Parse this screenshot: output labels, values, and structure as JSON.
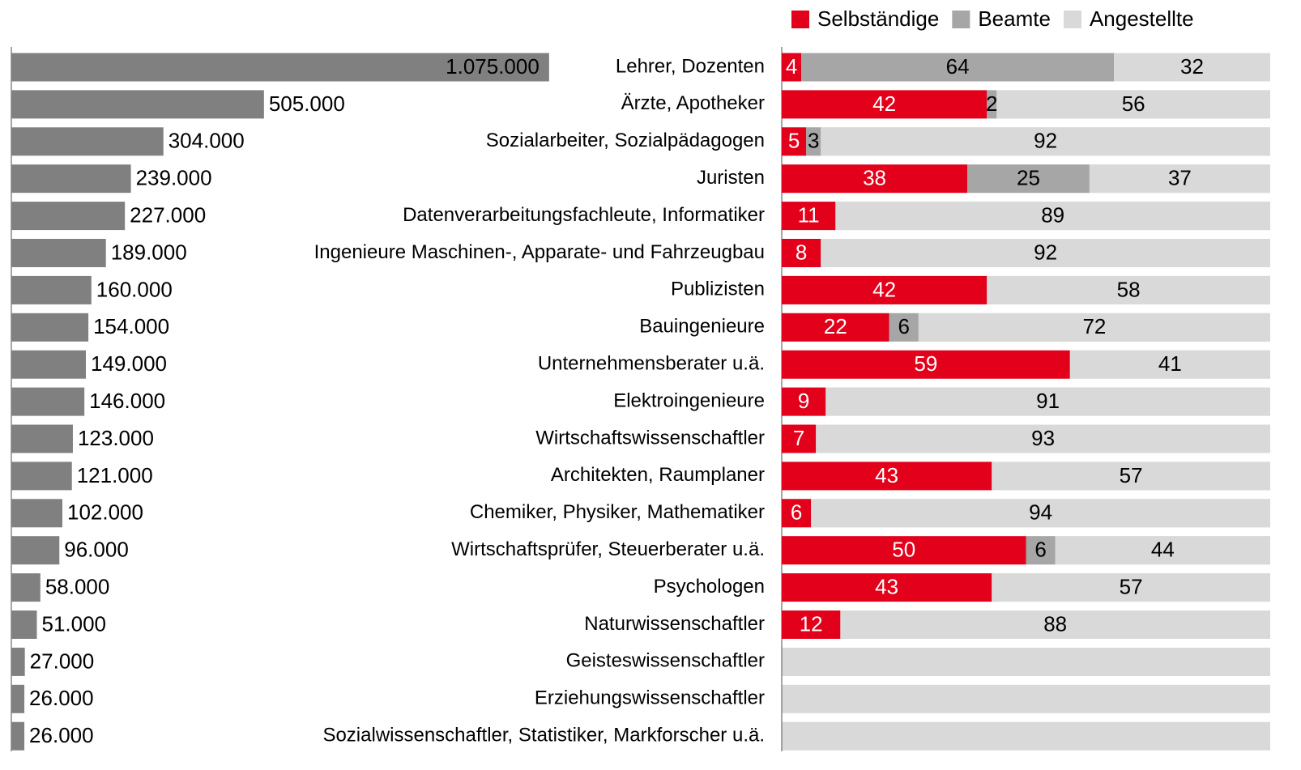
{
  "chart_data": [
    {
      "type": "hbar",
      "categories": [
        "Lehrer, Dozenten",
        "Ärzte, Apotheker",
        "Sozialarbeiter, Sozialpädagogen",
        "Juristen",
        "Datenverarbeitungsfachleute, Informatiker",
        "Ingenieure Maschinen-, Apparate- und Fahrzeugbau",
        "Publizisten",
        "Bauingenieure",
        "Unternehmensberater u.ä.",
        "Elektroingenieure",
        "Wirtschaftswissenschaftler",
        "Architekten, Raumplaner",
        "Chemiker, Physiker, Mathematiker",
        "Wirtschaftsprüfer, Steuerberater u.ä.",
        "Psychologen",
        "Naturwissenschaftler",
        "Geisteswissenschaftler",
        "Erziehungswissenschaftler",
        "Sozialwissenschaftler, Statistiker, Markforscher u.ä."
      ],
      "values": [
        1075000,
        505000,
        304000,
        239000,
        227000,
        189000,
        160000,
        154000,
        149000,
        146000,
        123000,
        121000,
        102000,
        96000,
        58000,
        51000,
        27000,
        26000,
        26000
      ],
      "value_labels": [
        "1.075.000",
        "505.000",
        "304.000",
        "239.000",
        "227.000",
        "189.000",
        "160.000",
        "154.000",
        "149.000",
        "146.000",
        "123.000",
        "121.000",
        "102.000",
        "96.000",
        "58.000",
        "51.000",
        "27.000",
        "26.000",
        "26.000"
      ],
      "color": "#808080",
      "xlim": [
        0,
        1200000
      ]
    },
    {
      "type": "stacked_hbar",
      "xlim": [
        0,
        100
      ],
      "legend": "top-right",
      "series": [
        {
          "name": "Selbständige",
          "color": "#e2001a",
          "values": [
            4,
            42,
            5,
            38,
            11,
            8,
            42,
            22,
            59,
            9,
            7,
            43,
            6,
            50,
            43,
            12,
            null,
            null,
            null
          ]
        },
        {
          "name": "Beamte",
          "color": "#a6a6a6",
          "values": [
            64,
            2,
            3,
            25,
            null,
            null,
            null,
            6,
            null,
            null,
            null,
            null,
            null,
            6,
            null,
            null,
            null,
            null,
            null
          ]
        },
        {
          "name": "Angestellte",
          "color": "#d9d9d9",
          "values": [
            32,
            56,
            92,
            37,
            89,
            92,
            58,
            72,
            41,
            91,
            93,
            57,
            94,
            44,
            57,
            88,
            null,
            null,
            null
          ]
        }
      ]
    }
  ]
}
